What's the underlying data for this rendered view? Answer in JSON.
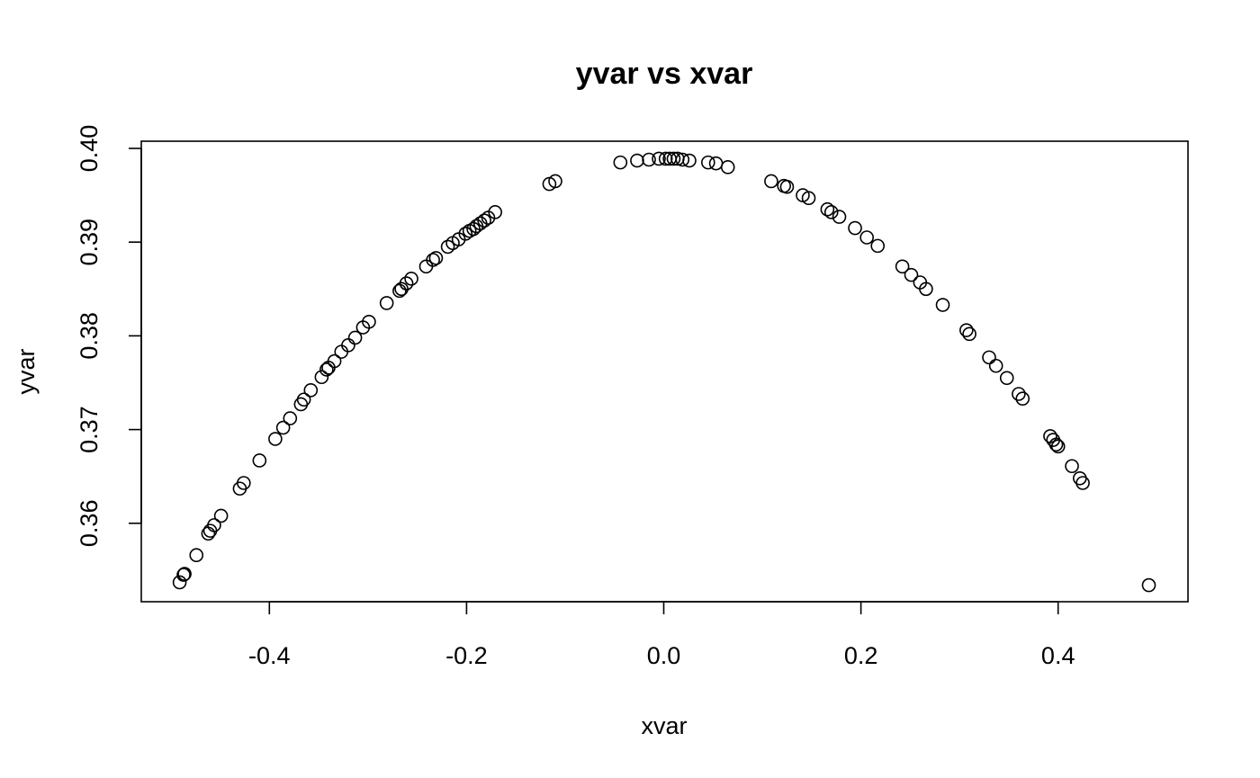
{
  "chart_data": {
    "type": "scatter",
    "title": "yvar vs xvar",
    "xlabel": "xvar",
    "ylabel": "yvar",
    "xlim": [
      -0.5,
      0.5
    ],
    "ylim": [
      0.353,
      0.4
    ],
    "xticks": [
      -0.4,
      -0.2,
      0.0,
      0.2,
      0.4
    ],
    "xtick_labels": [
      "-0.4",
      "-0.2",
      "0.0",
      "0.2",
      "0.4"
    ],
    "yticks": [
      0.36,
      0.37,
      0.38,
      0.39,
      0.4
    ],
    "ytick_labels": [
      "0.36",
      "0.37",
      "0.38",
      "0.39",
      "0.40"
    ],
    "grid": false,
    "point_color": "#000000",
    "series": [
      {
        "marker": "open-circle",
        "points": [
          [
            -0.491,
            0.3537
          ],
          [
            -0.487,
            0.3545
          ],
          [
            -0.486,
            0.3546
          ],
          [
            -0.474,
            0.3566
          ],
          [
            -0.462,
            0.3589
          ],
          [
            -0.46,
            0.3592
          ],
          [
            -0.456,
            0.3598
          ],
          [
            -0.449,
            0.3608
          ],
          [
            -0.43,
            0.3637
          ],
          [
            -0.426,
            0.3643
          ],
          [
            -0.41,
            0.3667
          ],
          [
            -0.394,
            0.369
          ],
          [
            -0.386,
            0.3702
          ],
          [
            -0.379,
            0.3712
          ],
          [
            -0.368,
            0.3727
          ],
          [
            -0.365,
            0.3732
          ],
          [
            -0.358,
            0.3742
          ],
          [
            -0.347,
            0.3756
          ],
          [
            -0.342,
            0.3764
          ],
          [
            -0.34,
            0.3766
          ],
          [
            -0.334,
            0.3773
          ],
          [
            -0.327,
            0.3783
          ],
          [
            -0.32,
            0.379
          ],
          [
            -0.313,
            0.3798
          ],
          [
            -0.305,
            0.3809
          ],
          [
            -0.299,
            0.3815
          ],
          [
            -0.281,
            0.3835
          ],
          [
            -0.268,
            0.3848
          ],
          [
            -0.266,
            0.385
          ],
          [
            -0.261,
            0.3856
          ],
          [
            -0.256,
            0.3861
          ],
          [
            -0.241,
            0.3874
          ],
          [
            -0.234,
            0.3881
          ],
          [
            -0.231,
            0.3883
          ],
          [
            -0.219,
            0.3895
          ],
          [
            -0.214,
            0.3899
          ],
          [
            -0.208,
            0.3903
          ],
          [
            -0.201,
            0.3909
          ],
          [
            -0.197,
            0.3912
          ],
          [
            -0.193,
            0.3914
          ],
          [
            -0.19,
            0.3917
          ],
          [
            -0.186,
            0.392
          ],
          [
            -0.182,
            0.3923
          ],
          [
            -0.178,
            0.3926
          ],
          [
            -0.171,
            0.3932
          ],
          [
            -0.116,
            0.3962
          ],
          [
            -0.11,
            0.3965
          ],
          [
            -0.044,
            0.3985
          ],
          [
            -0.027,
            0.3987
          ],
          [
            -0.015,
            0.3988
          ],
          [
            -0.005,
            0.3989
          ],
          [
            0.002,
            0.3989
          ],
          [
            0.006,
            0.3989
          ],
          [
            0.01,
            0.3989
          ],
          [
            0.014,
            0.3989
          ],
          [
            0.019,
            0.3988
          ],
          [
            0.026,
            0.3987
          ],
          [
            0.045,
            0.3985
          ],
          [
            0.053,
            0.3984
          ],
          [
            0.065,
            0.398
          ],
          [
            0.109,
            0.3965
          ],
          [
            0.122,
            0.396
          ],
          [
            0.125,
            0.3959
          ],
          [
            0.141,
            0.395
          ],
          [
            0.147,
            0.3947
          ],
          [
            0.166,
            0.3935
          ],
          [
            0.17,
            0.3932
          ],
          [
            0.178,
            0.3927
          ],
          [
            0.194,
            0.3915
          ],
          [
            0.206,
            0.3905
          ],
          [
            0.217,
            0.3896
          ],
          [
            0.242,
            0.3874
          ],
          [
            0.251,
            0.3865
          ],
          [
            0.26,
            0.3857
          ],
          [
            0.266,
            0.385
          ],
          [
            0.283,
            0.3833
          ],
          [
            0.307,
            0.3806
          ],
          [
            0.31,
            0.3802
          ],
          [
            0.33,
            0.3777
          ],
          [
            0.337,
            0.3768
          ],
          [
            0.348,
            0.3755
          ],
          [
            0.36,
            0.3738
          ],
          [
            0.364,
            0.3733
          ],
          [
            0.392,
            0.3693
          ],
          [
            0.395,
            0.3689
          ],
          [
            0.398,
            0.3684
          ],
          [
            0.4,
            0.3682
          ],
          [
            0.414,
            0.3661
          ],
          [
            0.422,
            0.3648
          ],
          [
            0.425,
            0.3643
          ],
          [
            0.492,
            0.3534
          ]
        ]
      }
    ]
  }
}
